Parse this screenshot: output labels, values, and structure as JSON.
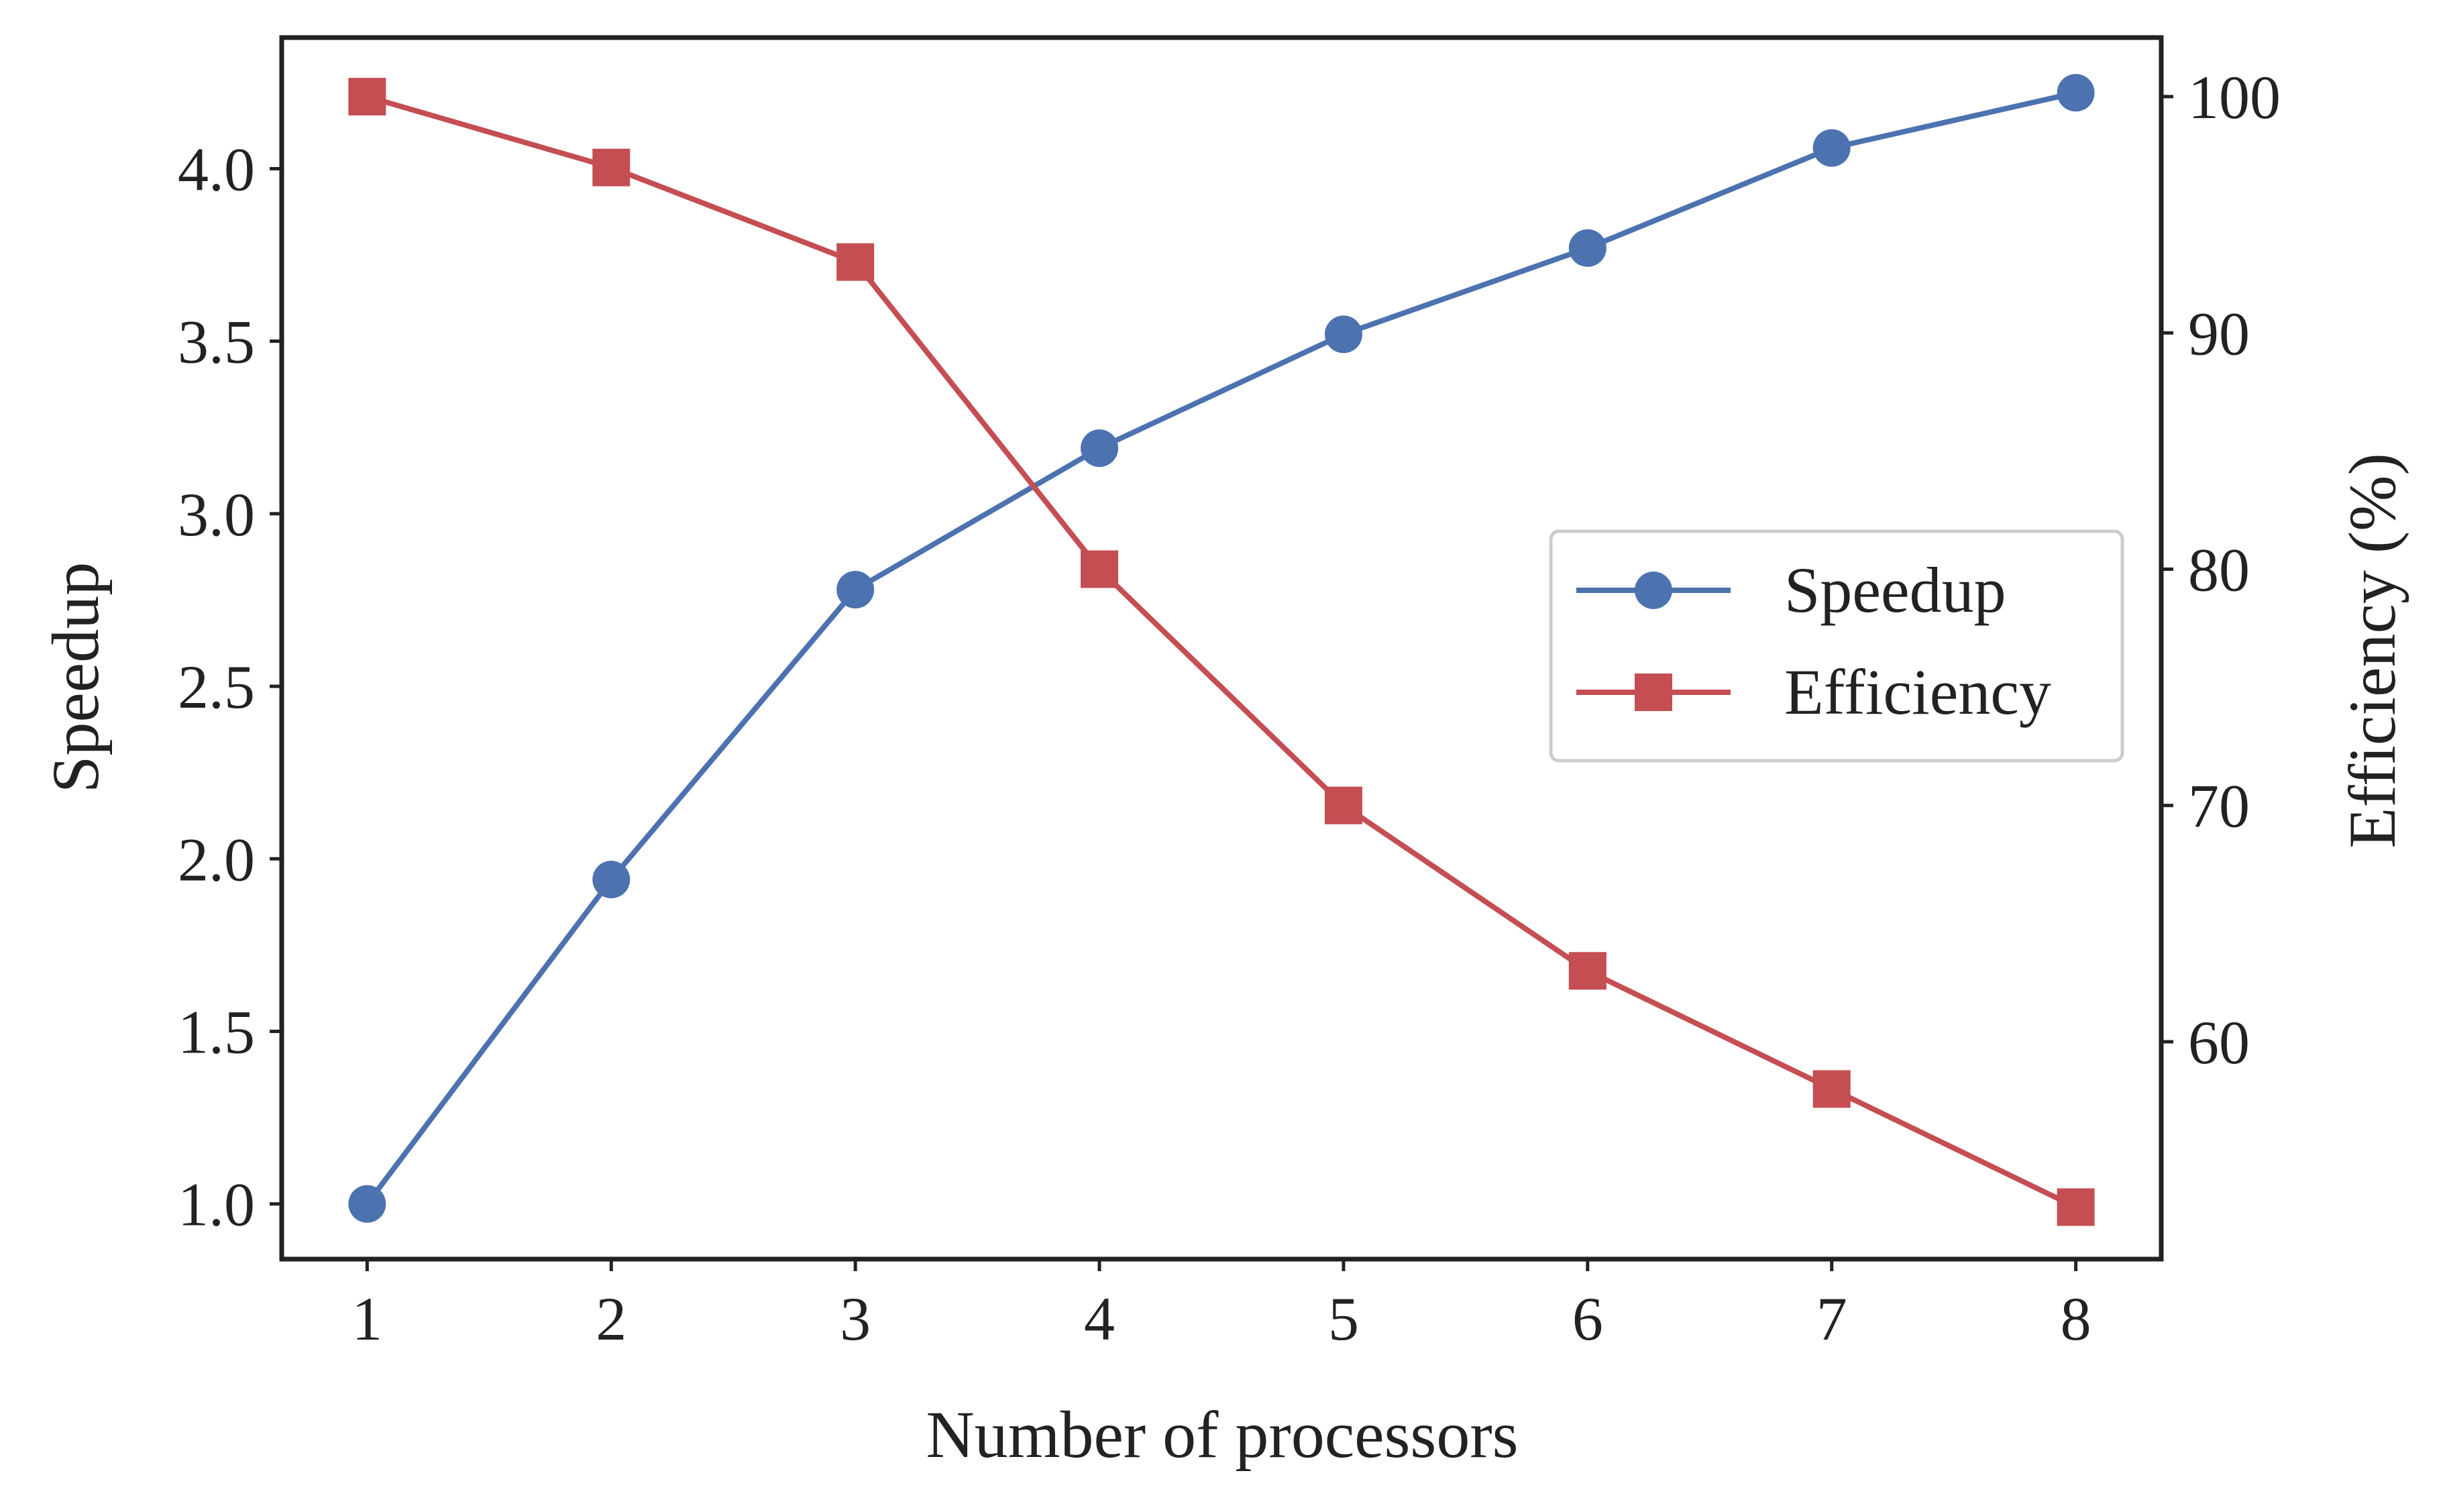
{
  "chart_data": {
    "type": "line",
    "x": [
      1,
      2,
      3,
      4,
      5,
      6,
      7,
      8
    ],
    "xlabel": "Number of processors",
    "ylabel_left": "Speedup",
    "ylabel_right": "Efficiency (%)",
    "xlim": [
      0.65,
      8.35
    ],
    "ylim_left": [
      0.84,
      4.38
    ],
    "ylim_right": [
      50.8,
      102.5
    ],
    "xticks": [
      1,
      2,
      3,
      4,
      5,
      6,
      7,
      8
    ],
    "yticks_left": [
      1.0,
      1.5,
      2.0,
      2.5,
      3.0,
      3.5,
      4.0
    ],
    "yticks_left_labels": [
      "1.0",
      "1.5",
      "2.0",
      "2.5",
      "3.0",
      "3.5",
      "4.0"
    ],
    "yticks_right": [
      60,
      70,
      80,
      90,
      100
    ],
    "grid": false,
    "legend_position": "center-right",
    "series": [
      {
        "name": "Speedup",
        "axis": "left",
        "color": "#4c72b0",
        "marker": "circle",
        "values": [
          1.0,
          1.94,
          2.78,
          3.19,
          3.52,
          3.77,
          4.06,
          4.22
        ]
      },
      {
        "name": "Efficiency",
        "axis": "right",
        "color": "#c44e52",
        "marker": "square",
        "values": [
          100,
          97,
          93,
          80,
          70,
          63,
          58,
          53
        ]
      }
    ]
  }
}
